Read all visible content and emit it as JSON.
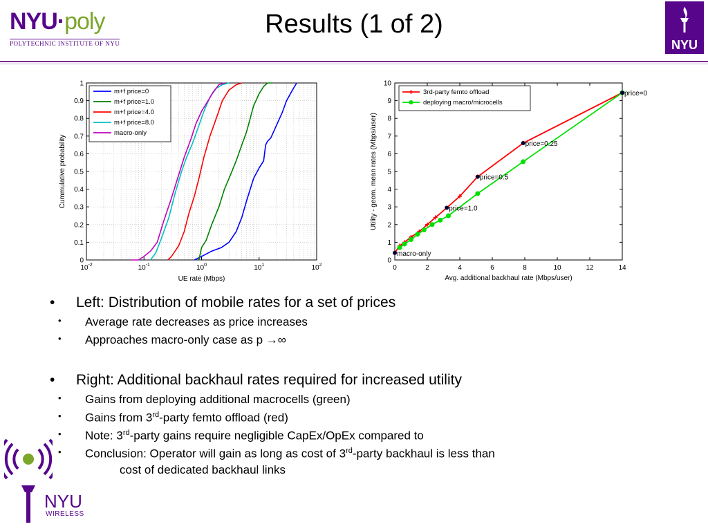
{
  "title": "Results (1 of 2)",
  "logos": {
    "nyupoly_main": "NYU·poly",
    "nyupoly_nyu": "NYU·",
    "nyupoly_poly": "poly",
    "nyupoly_sub": "POLYTECHNIC INSTITUTE OF NYU",
    "nyu": "NYU",
    "wireless_nyu": "NYU",
    "wireless_sub": "WIRELESS"
  },
  "bullets": {
    "left_main": "Left: Distribution of mobile rates for a set of prices",
    "left_sub1": "Average rate decreases as price increases",
    "left_sub2": "Approaches macro-only case as p →∞",
    "right_main": "Right: Additional backhaul rates required for increased utility",
    "right_sub1": "Gains from deploying additional macrocells (green)",
    "right_sub2_pre": "Gains from 3",
    "right_sub2_sup": "rd",
    "right_sub2_post": "-party femto offload (red)",
    "right_sub3_pre": "Note: 3",
    "right_sub3_sup": "rd",
    "right_sub3_post": "-party gains require negligible CapEx/OpEx compared to",
    "right_sub4_pre": "Conclusion: Operator will gain as long as cost of 3",
    "right_sub4_sup": "rd",
    "right_sub4_post": "-party backhaul is less than",
    "right_sub4_cont": "cost of dedicated backhaul links"
  },
  "chart_data": [
    {
      "type": "line",
      "xlabel": "UE rate (Mbps)",
      "ylabel": "Cummulative probability",
      "xscale": "log",
      "xlim": [
        0.01,
        100
      ],
      "ylim": [
        0,
        1
      ],
      "grid": true,
      "legend_position": "top-left",
      "xticks": [
        0.01,
        0.1,
        1,
        10,
        100
      ],
      "xtick_labels": [
        [
          "10",
          "-2"
        ],
        [
          "10",
          "-1"
        ],
        [
          "10",
          "0"
        ],
        [
          "10",
          "1"
        ],
        [
          "10",
          "2"
        ]
      ],
      "yticks": [
        0,
        0.1,
        0.2,
        0.3,
        0.4,
        0.5,
        0.6,
        0.7,
        0.8,
        0.9,
        1
      ],
      "ytick_labels": [
        "0",
        "0.1",
        "0.2",
        "0.3",
        "0.4",
        "0.5",
        "0.6",
        "0.7",
        "0.8",
        "0.9",
        "1"
      ],
      "series": [
        {
          "name": "m+f price=0",
          "color": "#0000ff",
          "x": [
            0.75,
            1.0,
            1.5,
            2.2,
            3.0,
            4.0,
            5.0,
            6.0,
            7.0,
            8.0,
            10.0,
            12.0,
            13.0,
            14.0,
            16.0,
            20.0,
            25.0,
            30.0,
            38.0,
            45.0
          ],
          "y": [
            0.0,
            0.02,
            0.05,
            0.07,
            0.1,
            0.16,
            0.24,
            0.33,
            0.4,
            0.46,
            0.52,
            0.56,
            0.65,
            0.67,
            0.69,
            0.76,
            0.83,
            0.9,
            0.96,
            1.0
          ]
        },
        {
          "name": "m+f price=1.0",
          "color": "#008000",
          "x": [
            0.9,
            1.0,
            1.2,
            1.5,
            2.0,
            2.5,
            3.0,
            4.0,
            5.0,
            6.0,
            7.0,
            8.0,
            10.0,
            12.0,
            14.0,
            17.0
          ],
          "y": [
            0.0,
            0.07,
            0.11,
            0.2,
            0.3,
            0.4,
            0.46,
            0.56,
            0.65,
            0.72,
            0.8,
            0.87,
            0.94,
            0.98,
            1.0,
            1.0
          ]
        },
        {
          "name": "m+f price=4.0",
          "color": "#ff0000",
          "x": [
            0.26,
            0.3,
            0.4,
            0.5,
            0.6,
            0.75,
            0.9,
            1.1,
            1.4,
            1.8,
            2.3,
            3.0,
            4.0,
            5.0
          ],
          "y": [
            0.0,
            0.02,
            0.08,
            0.16,
            0.26,
            0.36,
            0.46,
            0.58,
            0.7,
            0.8,
            0.9,
            0.96,
            0.99,
            1.0
          ]
        },
        {
          "name": "m+f price=8.0",
          "color": "#00c0c0",
          "x": [
            0.13,
            0.16,
            0.2,
            0.27,
            0.35,
            0.45,
            0.55,
            0.7,
            0.9,
            1.1,
            1.4,
            1.8,
            2.3,
            3.0
          ],
          "y": [
            0.0,
            0.04,
            0.12,
            0.24,
            0.38,
            0.5,
            0.58,
            0.66,
            0.76,
            0.84,
            0.92,
            0.97,
            0.99,
            1.0
          ]
        },
        {
          "name": "macro-only",
          "color": "#bf00bf",
          "x": [
            0.06,
            0.08,
            0.1,
            0.13,
            0.17,
            0.22,
            0.3,
            0.4,
            0.5,
            0.65,
            0.8,
            1.0,
            1.3,
            1.6,
            2.0,
            2.5
          ],
          "y": [
            0.0,
            0.0,
            0.02,
            0.05,
            0.1,
            0.22,
            0.35,
            0.48,
            0.58,
            0.68,
            0.77,
            0.84,
            0.9,
            0.95,
            0.99,
            1.0
          ]
        }
      ]
    },
    {
      "type": "line",
      "xlabel": "Avg. additional backhaul rate (Mbps/user)",
      "ylabel": "Utility - geom. mean rates (Mbps/user)",
      "xlim": [
        0,
        14
      ],
      "ylim": [
        0,
        10
      ],
      "grid": false,
      "legend_position": "top-left",
      "xticks": [
        0,
        2,
        4,
        6,
        8,
        10,
        12,
        14
      ],
      "xtick_labels": [
        "0",
        "2",
        "4",
        "6",
        "8",
        "10",
        "12",
        "14"
      ],
      "yticks": [
        0,
        1,
        2,
        3,
        4,
        5,
        6,
        7,
        8,
        9,
        10
      ],
      "ytick_labels": [
        "0",
        "1",
        "2",
        "3",
        "4",
        "5",
        "6",
        "7",
        "8",
        "9",
        "10"
      ],
      "series": [
        {
          "name": "3rd-party femto offload",
          "color": "#ff0000",
          "marker": "plus",
          "x": [
            0,
            0.3,
            0.6,
            1.0,
            1.5,
            2.0,
            2.5,
            3.2,
            4.0,
            5.1,
            7.9,
            14.0
          ],
          "y": [
            0.4,
            0.8,
            1.0,
            1.3,
            1.6,
            2.0,
            2.4,
            2.95,
            3.6,
            4.7,
            6.6,
            9.45
          ]
        },
        {
          "name": "deploying macro/microcells",
          "color": "#00e000",
          "marker": "circle",
          "x": [
            0.3,
            0.6,
            1.0,
            1.4,
            1.8,
            2.3,
            2.8,
            3.3,
            5.1,
            7.9,
            14.0
          ],
          "y": [
            0.7,
            0.9,
            1.15,
            1.45,
            1.7,
            2.0,
            2.25,
            2.5,
            3.75,
            5.55,
            9.45
          ]
        }
      ],
      "annotations": [
        {
          "text": "price=0",
          "x": 14.0,
          "y": 9.45
        },
        {
          "text": "price=0.25",
          "x": 7.9,
          "y": 6.6
        },
        {
          "text": "price=0.5",
          "x": 5.1,
          "y": 4.7
        },
        {
          "text": "price=1.0",
          "x": 3.2,
          "y": 2.95
        },
        {
          "text": "macro-only",
          "x": 0.0,
          "y": 0.4
        }
      ]
    }
  ]
}
